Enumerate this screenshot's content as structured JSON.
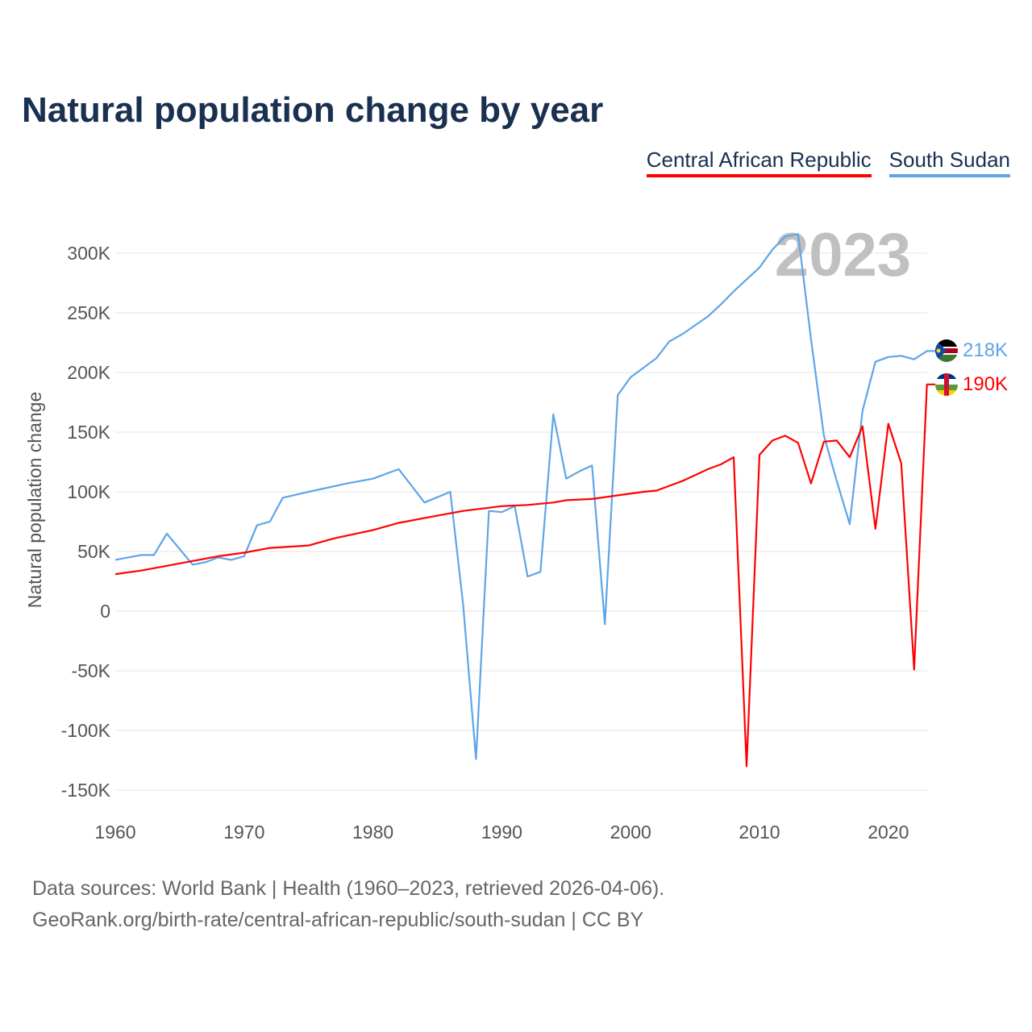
{
  "title": "Natural population change by year",
  "legend": [
    {
      "label": "Central African Republic",
      "color": "#ff0000"
    },
    {
      "label": "South Sudan",
      "color": "#5ea5e8"
    }
  ],
  "year_watermark": "2023",
  "footer": {
    "line1": "Data sources: World Bank | Health (1960–2023, retrieved 2026-04-06).",
    "line2": "GeoRank.org/birth-rate/central-african-republic/south-sudan | CC BY"
  },
  "chart_data": {
    "type": "line",
    "title": "Natural population change by year",
    "xlabel": "",
    "ylabel": "Natural population change",
    "xlim": [
      1960,
      2023
    ],
    "ylim": [
      -150000,
      320000
    ],
    "x_ticks": [
      "1960",
      "1970",
      "1980",
      "1990",
      "2000",
      "2010",
      "2020"
    ],
    "y_ticks": [
      {
        "v": 300,
        "l": "300K"
      },
      {
        "v": 250,
        "l": "250K"
      },
      {
        "v": 200,
        "l": "200K"
      },
      {
        "v": 150,
        "l": "150K"
      },
      {
        "v": 100,
        "l": "100K"
      },
      {
        "v": 50,
        "l": "50K"
      },
      {
        "v": 0,
        "l": "0"
      },
      {
        "v": -50,
        "l": "-50K"
      },
      {
        "v": -100,
        "l": "-100K"
      },
      {
        "v": -150,
        "l": "-150K"
      }
    ],
    "grid": true,
    "legend_position": "top-right",
    "units": "thousands",
    "series": [
      {
        "name": "South Sudan",
        "color": "#5ea5e8",
        "end_label": "218K",
        "points": [
          [
            1960,
            43
          ],
          [
            1962,
            47
          ],
          [
            1963,
            47
          ],
          [
            1964,
            65
          ],
          [
            1966,
            39
          ],
          [
            1967,
            41
          ],
          [
            1968,
            45
          ],
          [
            1969,
            43
          ],
          [
            1970,
            46
          ],
          [
            1971,
            72
          ],
          [
            1972,
            75
          ],
          [
            1973,
            95
          ],
          [
            1975,
            100
          ],
          [
            1978,
            107
          ],
          [
            1980,
            111
          ],
          [
            1982,
            119
          ],
          [
            1984,
            91
          ],
          [
            1986,
            100
          ],
          [
            1987,
            5
          ],
          [
            1988,
            -124
          ],
          [
            1989,
            84
          ],
          [
            1990,
            83
          ],
          [
            1991,
            88
          ],
          [
            1992,
            29
          ],
          [
            1993,
            33
          ],
          [
            1994,
            165
          ],
          [
            1995,
            111
          ],
          [
            1996,
            117
          ],
          [
            1997,
            122
          ],
          [
            1998,
            -11
          ],
          [
            1999,
            181
          ],
          [
            2000,
            196
          ],
          [
            2002,
            212
          ],
          [
            2003,
            226
          ],
          [
            2004,
            232
          ],
          [
            2006,
            247
          ],
          [
            2007,
            257
          ],
          [
            2008,
            268
          ],
          [
            2009,
            278
          ],
          [
            2010,
            288
          ],
          [
            2011,
            303
          ],
          [
            2012,
            314
          ],
          [
            2013,
            316
          ],
          [
            2014,
            228
          ],
          [
            2015,
            147
          ],
          [
            2016,
            109
          ],
          [
            2017,
            73
          ],
          [
            2018,
            168
          ],
          [
            2019,
            209
          ],
          [
            2020,
            213
          ],
          [
            2021,
            214
          ],
          [
            2022,
            211
          ],
          [
            2023,
            218
          ]
        ]
      },
      {
        "name": "Central African Republic",
        "color": "#ff0000",
        "end_label": "190K",
        "points": [
          [
            1960,
            31
          ],
          [
            1962,
            34
          ],
          [
            1964,
            38
          ],
          [
            1966,
            42
          ],
          [
            1968,
            46
          ],
          [
            1970,
            49
          ],
          [
            1972,
            53
          ],
          [
            1975,
            55
          ],
          [
            1977,
            61
          ],
          [
            1980,
            68
          ],
          [
            1982,
            74
          ],
          [
            1985,
            80
          ],
          [
            1987,
            84
          ],
          [
            1990,
            88
          ],
          [
            1992,
            89
          ],
          [
            1994,
            91
          ],
          [
            1995,
            93
          ],
          [
            1997,
            94
          ],
          [
            1999,
            97
          ],
          [
            2001,
            100
          ],
          [
            2002,
            101
          ],
          [
            2003,
            105
          ],
          [
            2004,
            109
          ],
          [
            2006,
            119
          ],
          [
            2007,
            123
          ],
          [
            2008,
            129
          ],
          [
            2009,
            -130
          ],
          [
            2010,
            131
          ],
          [
            2011,
            143
          ],
          [
            2012,
            147
          ],
          [
            2013,
            141
          ],
          [
            2014,
            107
          ],
          [
            2015,
            142
          ],
          [
            2016,
            143
          ],
          [
            2017,
            129
          ],
          [
            2018,
            155
          ],
          [
            2019,
            69
          ],
          [
            2020,
            157
          ],
          [
            2021,
            124
          ],
          [
            2022,
            -49
          ],
          [
            2023,
            190
          ]
        ]
      }
    ]
  }
}
